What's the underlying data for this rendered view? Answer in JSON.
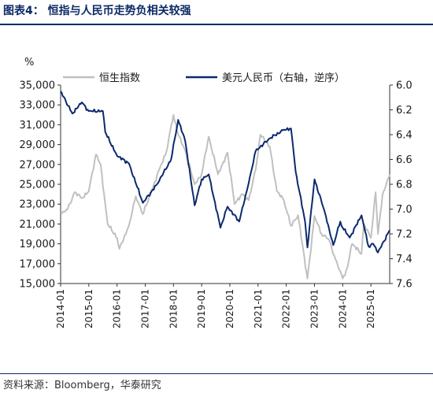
{
  "header": {
    "title": "图表4：  恒指与人民币走势负相关较强"
  },
  "footer": {
    "source": "资料来源：Bloomberg，华泰研究"
  },
  "chart_data": {
    "type": "line",
    "left_unit": "%",
    "x_tick_labels": [
      "2014-01",
      "2015-01",
      "2016-01",
      "2017-01",
      "2018-01",
      "2019-01",
      "2020-01",
      "2021-01",
      "2022-01",
      "2023-01",
      "2024-01",
      "2025-01"
    ],
    "x_range": [
      "2014-01",
      "2025-09"
    ],
    "y_left": {
      "ticks": [
        "15,000",
        "17,000",
        "19,000",
        "21,000",
        "23,000",
        "25,000",
        "27,000",
        "29,000",
        "31,000",
        "33,000",
        "35,000"
      ],
      "range": [
        15000,
        35000
      ]
    },
    "y_right": {
      "ticks": [
        "6.0",
        "6.2",
        "6.4",
        "6.6",
        "6.8",
        "7.0",
        "7.2",
        "7.4",
        "7.6"
      ],
      "range": [
        6.0,
        7.6
      ],
      "inverted": true
    },
    "colors": {
      "hsi": "#c0c0c0",
      "cny": "#0b2a6e"
    },
    "series": [
      {
        "name": "恒生指数",
        "axis": "left",
        "x": [
          "2014-01",
          "2014-04",
          "2014-07",
          "2014-10",
          "2015-01",
          "2015-04",
          "2015-06",
          "2015-09",
          "2016-01",
          "2016-02",
          "2016-06",
          "2016-09",
          "2016-12",
          "2017-04",
          "2017-07",
          "2017-10",
          "2018-01",
          "2018-03",
          "2018-06",
          "2018-10",
          "2019-01",
          "2019-04",
          "2019-08",
          "2019-12",
          "2020-03",
          "2020-06",
          "2020-09",
          "2020-12",
          "2021-02",
          "2021-06",
          "2021-09",
          "2021-12",
          "2022-03",
          "2022-06",
          "2022-10",
          "2023-01",
          "2023-04",
          "2023-07",
          "2023-10",
          "2024-01",
          "2024-03",
          "2024-05",
          "2024-09",
          "2024-10",
          "2025-01",
          "2025-03",
          "2025-04",
          "2025-06",
          "2025-09"
        ],
        "values": [
          22000,
          22500,
          24200,
          23600,
          24300,
          28000,
          27000,
          21000,
          19600,
          18500,
          20800,
          23800,
          22000,
          24500,
          26500,
          28300,
          32000,
          30000,
          28400,
          25000,
          26000,
          29800,
          26000,
          28200,
          23000,
          24000,
          23400,
          26500,
          30000,
          28800,
          24300,
          23400,
          20800,
          21900,
          15500,
          21800,
          20000,
          19500,
          17400,
          15500,
          16600,
          19000,
          18000,
          21000,
          19600,
          24200,
          20000,
          24000,
          26000
        ]
      },
      {
        "name": "美元人民币（右轴，逆序）",
        "axis": "right",
        "x": [
          "2014-01",
          "2014-06",
          "2014-10",
          "2015-01",
          "2015-07",
          "2015-08",
          "2016-01",
          "2016-06",
          "2016-12",
          "2017-06",
          "2017-12",
          "2018-03",
          "2018-06",
          "2018-10",
          "2019-01",
          "2019-04",
          "2019-09",
          "2019-12",
          "2020-05",
          "2020-09",
          "2020-12",
          "2021-06",
          "2021-12",
          "2022-03",
          "2022-05",
          "2022-09",
          "2022-10",
          "2023-01",
          "2023-05",
          "2023-09",
          "2023-12",
          "2024-01",
          "2024-04",
          "2024-09",
          "2024-12",
          "2025-02",
          "2025-04",
          "2025-09"
        ],
        "values": [
          6.05,
          6.23,
          6.14,
          6.21,
          6.21,
          6.38,
          6.57,
          6.63,
          6.95,
          6.8,
          6.6,
          6.28,
          6.45,
          6.97,
          6.76,
          6.72,
          7.15,
          6.98,
          7.1,
          6.79,
          6.53,
          6.43,
          6.36,
          6.35,
          6.7,
          7.1,
          7.31,
          6.76,
          7.0,
          7.29,
          7.1,
          7.15,
          7.23,
          7.05,
          7.3,
          7.28,
          7.35,
          7.17
        ]
      }
    ],
    "legend_position": "top",
    "grid": false
  }
}
